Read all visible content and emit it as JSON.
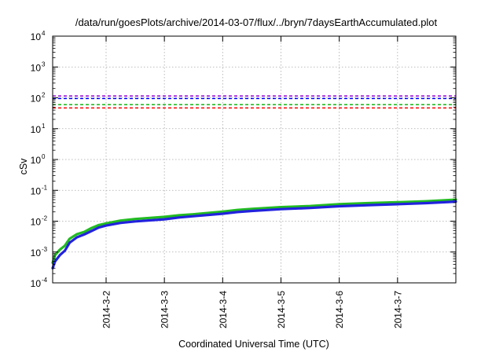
{
  "chart_data": {
    "type": "line",
    "title": "/data/run/goesPlots/archive/2014-03-07/flux/../bryn/7daysEarthAccumulated.plot",
    "xlabel": "Coordinated Universal Time (UTC)",
    "ylabel": "cSv",
    "yscale": "log",
    "ylim": [
      0.0001,
      10000
    ],
    "y_ticks": [
      {
        "base": "10",
        "exp": "-4",
        "value": 0.0001
      },
      {
        "base": "10",
        "exp": "-3",
        "value": 0.001
      },
      {
        "base": "10",
        "exp": "-2",
        "value": 0.01
      },
      {
        "base": "10",
        "exp": "-1",
        "value": 0.1
      },
      {
        "base": "10",
        "exp": "0",
        "value": 1
      },
      {
        "base": "10",
        "exp": "1",
        "value": 10
      },
      {
        "base": "10",
        "exp": "2",
        "value": 100
      },
      {
        "base": "10",
        "exp": "3",
        "value": 1000
      },
      {
        "base": "10",
        "exp": "4",
        "value": 10000
      }
    ],
    "xlim": [
      "2014-03-01T02:00",
      "2014-03-08T00:00"
    ],
    "x_ticks": [
      {
        "label": "2014-3-2",
        "value": "2014-03-02T00:00"
      },
      {
        "label": "2014-3-3",
        "value": "2014-03-03T00:00"
      },
      {
        "label": "2014-3-4",
        "value": "2014-03-04T00:00"
      },
      {
        "label": "2014-3-5",
        "value": "2014-03-05T00:00"
      },
      {
        "label": "2014-3-6",
        "value": "2014-03-06T00:00"
      },
      {
        "label": "2014-3-7",
        "value": "2014-03-07T00:00"
      }
    ],
    "grid": true,
    "threshold_lines": [
      {
        "value": 115,
        "color": "#9400d3",
        "style": "dashed"
      },
      {
        "value": 95,
        "color": "#0000ff",
        "style": "dashed"
      },
      {
        "value": 60,
        "color": "#22bb22",
        "style": "dashed"
      },
      {
        "value": 47,
        "color": "#ff0000",
        "style": "dashed"
      }
    ],
    "series": [
      {
        "color": "#22bb22",
        "points": [
          [
            "2014-03-01T02:00",
            0.00045
          ],
          [
            "2014-03-01T03:00",
            0.0008
          ],
          [
            "2014-03-01T05:00",
            0.0012
          ],
          [
            "2014-03-01T07:00",
            0.0016
          ],
          [
            "2014-03-01T09:00",
            0.0027
          ],
          [
            "2014-03-01T12:00",
            0.0038
          ],
          [
            "2014-03-01T15:00",
            0.0045
          ],
          [
            "2014-03-01T18:00",
            0.006
          ],
          [
            "2014-03-01T21:00",
            0.0075
          ],
          [
            "2014-03-02T00:00",
            0.0085
          ],
          [
            "2014-03-02T06:00",
            0.0105
          ],
          [
            "2014-03-02T12:00",
            0.0118
          ],
          [
            "2014-03-03T00:00",
            0.0138
          ],
          [
            "2014-03-03T06:00",
            0.0155
          ],
          [
            "2014-03-03T12:00",
            0.0168
          ],
          [
            "2014-03-04T00:00",
            0.0205
          ],
          [
            "2014-03-04T06:00",
            0.0232
          ],
          [
            "2014-03-04T12:00",
            0.025
          ],
          [
            "2014-03-05T00:00",
            0.0285
          ],
          [
            "2014-03-05T12:00",
            0.031
          ],
          [
            "2014-03-06T00:00",
            0.0355
          ],
          [
            "2014-03-06T12:00",
            0.0385
          ],
          [
            "2014-03-07T00:00",
            0.041
          ],
          [
            "2014-03-07T12:00",
            0.0445
          ],
          [
            "2014-03-08T00:00",
            0.05
          ]
        ]
      },
      {
        "color": "#2222dd",
        "points": [
          [
            "2014-03-01T02:00",
            0.0003
          ],
          [
            "2014-03-01T03:00",
            0.0005
          ],
          [
            "2014-03-01T05:00",
            0.0008
          ],
          [
            "2014-03-01T07:00",
            0.0011
          ],
          [
            "2014-03-01T09:00",
            0.002
          ],
          [
            "2014-03-01T12:00",
            0.003
          ],
          [
            "2014-03-01T15:00",
            0.0037
          ],
          [
            "2014-03-01T18:00",
            0.0048
          ],
          [
            "2014-03-01T21:00",
            0.0062
          ],
          [
            "2014-03-02T00:00",
            0.0072
          ],
          [
            "2014-03-02T06:00",
            0.0088
          ],
          [
            "2014-03-02T12:00",
            0.0098
          ],
          [
            "2014-03-03T00:00",
            0.0115
          ],
          [
            "2014-03-03T06:00",
            0.0132
          ],
          [
            "2014-03-03T12:00",
            0.0145
          ],
          [
            "2014-03-04T00:00",
            0.0175
          ],
          [
            "2014-03-04T06:00",
            0.0198
          ],
          [
            "2014-03-04T12:00",
            0.0215
          ],
          [
            "2014-03-05T00:00",
            0.0245
          ],
          [
            "2014-03-05T12:00",
            0.0268
          ],
          [
            "2014-03-06T00:00",
            0.0305
          ],
          [
            "2014-03-06T12:00",
            0.033
          ],
          [
            "2014-03-07T00:00",
            0.0355
          ],
          [
            "2014-03-07T12:00",
            0.0385
          ],
          [
            "2014-03-08T00:00",
            0.043
          ]
        ]
      }
    ]
  }
}
